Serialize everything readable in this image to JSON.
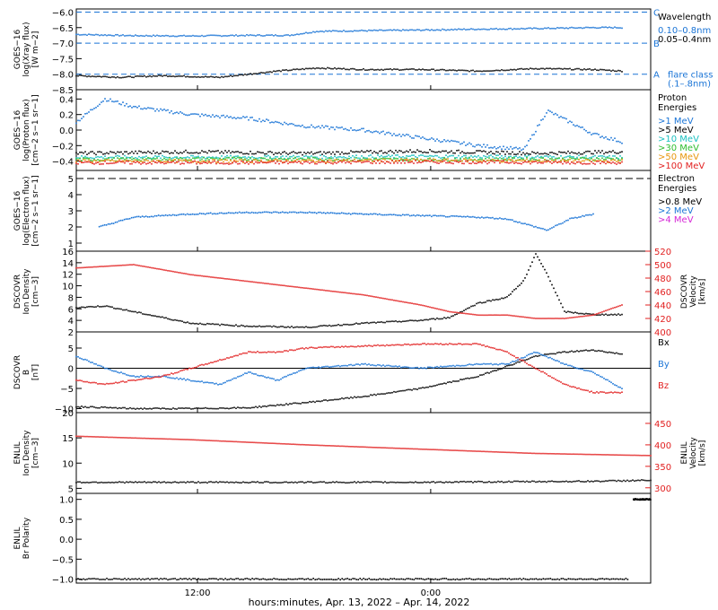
{
  "figure": {
    "footer": "hours:minutes, Apr. 13, 2022 – Apr. 14, 2022",
    "time_ticks": [
      "12:00",
      "0:00"
    ]
  },
  "colors": {
    "axis": "#000000",
    "xray_long": "#000000",
    "xray_short": "#1a74d6",
    "flare_line": "#1a74d6",
    "p1": "#1a74d6",
    "p5": "#000000",
    "p10": "#19c0c0",
    "p30": "#2ebd2e",
    "p50": "#e8960c",
    "p100": "#e22020",
    "e08": "#000000",
    "e2": "#1a74d6",
    "e4": "#d628d6",
    "density": "#000000",
    "velocity": "#e22020",
    "bx": "#000000",
    "by": "#1a74d6",
    "bz": "#e22020"
  },
  "chart_data": [
    {
      "type": "scatter",
      "id": "xray",
      "ylabel": [
        "GOES−16",
        "log(Xray flux)",
        "[W m−2]"
      ],
      "y_ticks": [
        "−6.0",
        "−6.5",
        "−7.0",
        "−7.5",
        "−8.0",
        "−8.5"
      ],
      "ylim": [
        -8.5,
        -5.9
      ],
      "flare_class": [
        {
          "letter": "C",
          "value": -6.0
        },
        {
          "letter": "B",
          "value": -7.0
        },
        {
          "letter": "A",
          "value": -8.0
        }
      ],
      "legend": {
        "title": "Wavelength",
        "entries": [
          "0.10–0.8nm",
          "0.05–0.4nm"
        ],
        "note": [
          "flare class",
          "(.1–.8nm)"
        ]
      },
      "series": [
        {
          "key": "xray_short",
          "x": [
            0,
            0.1,
            0.2,
            0.3,
            0.37,
            0.42,
            0.5,
            0.6,
            0.7,
            0.8,
            0.9,
            0.95
          ],
          "y": [
            -6.72,
            -6.76,
            -6.77,
            -6.75,
            -6.75,
            -6.62,
            -6.6,
            -6.58,
            -6.55,
            -6.53,
            -6.5,
            -6.5
          ]
        },
        {
          "key": "xray_long",
          "x": [
            0,
            0.08,
            0.15,
            0.25,
            0.3,
            0.35,
            0.42,
            0.5,
            0.6,
            0.7,
            0.8,
            0.9,
            0.95
          ],
          "y": [
            -8.05,
            -8.1,
            -8.05,
            -8.1,
            -8.0,
            -7.9,
            -7.8,
            -7.85,
            -7.85,
            -7.9,
            -7.82,
            -7.85,
            -7.9
          ]
        }
      ]
    },
    {
      "type": "scatter",
      "id": "protons",
      "ylabel": [
        "GOES−16",
        "log(Proton flux)",
        "[cm−2 s−1 sr−1]"
      ],
      "y_ticks": [
        "0.4",
        "0.2",
        "0.0",
        "−0.2",
        "−0.4"
      ],
      "ylim": [
        -0.52,
        0.52
      ],
      "legend": {
        "title": "Proton Energies",
        "entries": [
          ">1 MeV",
          ">5 MeV",
          ">10 MeV",
          ">30 MeV",
          ">50 MeV",
          ">100 MeV"
        ]
      },
      "series": [
        {
          "key": "p1",
          "x": [
            0,
            0.05,
            0.1,
            0.2,
            0.3,
            0.4,
            0.5,
            0.6,
            0.7,
            0.78,
            0.82,
            0.86,
            0.9,
            0.95
          ],
          "y": [
            0.1,
            0.4,
            0.3,
            0.2,
            0.15,
            0.05,
            0.0,
            -0.1,
            -0.2,
            -0.25,
            0.25,
            0.1,
            -0.05,
            -0.15
          ]
        },
        {
          "key": "p5",
          "x": [
            0,
            0.2,
            0.4,
            0.6,
            0.8,
            0.95
          ],
          "y": [
            -0.3,
            -0.28,
            -0.3,
            -0.27,
            -0.3,
            -0.28
          ]
        },
        {
          "key": "p10",
          "x": [
            0,
            0.3,
            0.6,
            0.95
          ],
          "y": [
            -0.35,
            -0.35,
            -0.34,
            -0.35
          ]
        },
        {
          "key": "p30",
          "x": [
            0,
            0.3,
            0.6,
            0.95
          ],
          "y": [
            -0.38,
            -0.37,
            -0.38,
            -0.37
          ]
        },
        {
          "key": "p50",
          "x": [
            0,
            0.3,
            0.6,
            0.95
          ],
          "y": [
            -0.4,
            -0.4,
            -0.39,
            -0.4
          ]
        },
        {
          "key": "p100",
          "x": [
            0,
            0.3,
            0.6,
            0.95
          ],
          "y": [
            -0.42,
            -0.42,
            -0.41,
            -0.42
          ]
        }
      ]
    },
    {
      "type": "scatter",
      "id": "electrons",
      "ylabel": [
        "GOES−16",
        "log(Electron flux)",
        "[cm−2 s−1 sr−1]"
      ],
      "y_ticks": [
        "5",
        "4",
        "3",
        "2",
        "1"
      ],
      "ylim": [
        0.5,
        5.5
      ],
      "threshold": 5.0,
      "legend": {
        "title": "Electron Energies",
        "entries": [
          ">0.8 MeV",
          ">2 MeV",
          ">4 MeV"
        ]
      },
      "series": [
        {
          "key": "e2",
          "x": [
            0.04,
            0.1,
            0.2,
            0.3,
            0.4,
            0.5,
            0.6,
            0.7,
            0.75,
            0.82,
            0.86,
            0.9
          ],
          "y": [
            2.0,
            2.6,
            2.8,
            2.9,
            2.9,
            2.8,
            2.7,
            2.6,
            2.5,
            1.8,
            2.5,
            2.8
          ]
        }
      ]
    },
    {
      "type": "scatter",
      "id": "dscovr_plasma",
      "ylabel": [
        "DSCOVR",
        "Ion Density",
        "[cm−3]"
      ],
      "ylabel_right": [
        "DSCOVR",
        "Velocity",
        "[km/s]"
      ],
      "y_ticks": [
        "16",
        "14",
        "12",
        "10",
        "8",
        "6",
        "4",
        "2"
      ],
      "ylim": [
        2,
        16
      ],
      "y2_ticks": [
        "520",
        "500",
        "480",
        "460",
        "440",
        "420",
        "400"
      ],
      "y2lim": [
        400,
        520
      ],
      "series": [
        {
          "key": "density",
          "x": [
            0,
            0.05,
            0.1,
            0.15,
            0.2,
            0.3,
            0.4,
            0.5,
            0.6,
            0.65,
            0.7,
            0.75,
            0.78,
            0.8,
            0.82,
            0.85,
            0.9,
            0.95
          ],
          "y": [
            6.2,
            6.5,
            5.5,
            4.5,
            3.5,
            3.0,
            2.8,
            3.5,
            4.0,
            4.5,
            7.0,
            8.0,
            11.0,
            15.5,
            12.0,
            5.5,
            5.0,
            5.0
          ]
        },
        {
          "key": "velocity",
          "axis": "right",
          "x": [
            0,
            0.1,
            0.2,
            0.3,
            0.4,
            0.5,
            0.6,
            0.65,
            0.7,
            0.75,
            0.8,
            0.85,
            0.9,
            0.95
          ],
          "y": [
            495,
            500,
            485,
            475,
            465,
            455,
            440,
            430,
            425,
            425,
            420,
            420,
            425,
            440
          ]
        }
      ]
    },
    {
      "type": "scatter",
      "id": "dscovr_mag",
      "ylabel": [
        "DSCOVR",
        "B",
        "[nT]"
      ],
      "y_ticks": [
        "5",
        "0",
        "−5",
        "−10"
      ],
      "ylim": [
        -11,
        9
      ],
      "zero_line": 0,
      "legend": {
        "entries": [
          "Bx",
          "By",
          "Bz"
        ]
      },
      "series": [
        {
          "key": "bx",
          "x": [
            0,
            0.1,
            0.2,
            0.3,
            0.4,
            0.5,
            0.6,
            0.65,
            0.7,
            0.75,
            0.8,
            0.85,
            0.9,
            0.95
          ],
          "y": [
            -9.5,
            -10,
            -10,
            -9.8,
            -8.5,
            -7,
            -5,
            -3.5,
            -2,
            0.5,
            3,
            4,
            4.5,
            3.5
          ]
        },
        {
          "key": "by",
          "x": [
            0,
            0.05,
            0.1,
            0.15,
            0.2,
            0.25,
            0.3,
            0.35,
            0.4,
            0.5,
            0.6,
            0.7,
            0.75,
            0.8,
            0.85,
            0.9,
            0.95
          ],
          "y": [
            3,
            0,
            -2,
            -2,
            -3,
            -4,
            -1,
            -3,
            0,
            1,
            0,
            1,
            1,
            4,
            1,
            -1,
            -5
          ]
        },
        {
          "key": "bz",
          "x": [
            0,
            0.05,
            0.1,
            0.15,
            0.2,
            0.25,
            0.3,
            0.35,
            0.4,
            0.5,
            0.6,
            0.7,
            0.75,
            0.8,
            0.85,
            0.9,
            0.95
          ],
          "y": [
            -3,
            -4,
            -3,
            -2,
            0,
            2,
            4,
            4,
            5,
            5.5,
            6,
            6,
            4,
            0,
            -4,
            -6,
            -6
          ]
        }
      ]
    },
    {
      "type": "scatter",
      "id": "enlil_plasma",
      "ylabel": [
        "ENLIL",
        "Ion Density",
        "[cm−3]"
      ],
      "ylabel_right": [
        "ENLIL",
        "Velocity",
        "[km/s]"
      ],
      "y_ticks": [
        "20",
        "15",
        "10",
        "5"
      ],
      "ylim": [
        4,
        20
      ],
      "y2_ticks": [
        "450",
        "400",
        "350",
        "300"
      ],
      "y2lim": [
        287,
        475
      ],
      "series": [
        {
          "key": "density",
          "x": [
            0,
            0.3,
            0.6,
            0.9,
            1.0
          ],
          "y": [
            6.2,
            6.2,
            6.2,
            6.4,
            6.6
          ]
        },
        {
          "key": "velocity",
          "axis": "right",
          "x": [
            0,
            0.2,
            0.4,
            0.6,
            0.8,
            1.0
          ],
          "y": [
            420,
            412,
            400,
            390,
            380,
            375
          ]
        }
      ]
    },
    {
      "type": "scatter",
      "id": "enlil_polarity",
      "ylabel": [
        "ENLIL",
        "Br Polarity"
      ],
      "y_ticks": [
        "1.0",
        "0.5",
        "0.0",
        "−0.5",
        "−1.0"
      ],
      "ylim": [
        -1.1,
        1.15
      ],
      "series": [
        {
          "key": "density",
          "x": [
            0,
            0.2,
            0.4,
            0.6,
            0.8,
            0.96
          ],
          "y": [
            -1,
            -1,
            -1,
            -1,
            -1,
            -1
          ]
        },
        {
          "key": "density",
          "x": [
            0.97,
            0.98,
            0.99,
            1.0
          ],
          "y": [
            1,
            1,
            1,
            1
          ]
        }
      ]
    }
  ]
}
